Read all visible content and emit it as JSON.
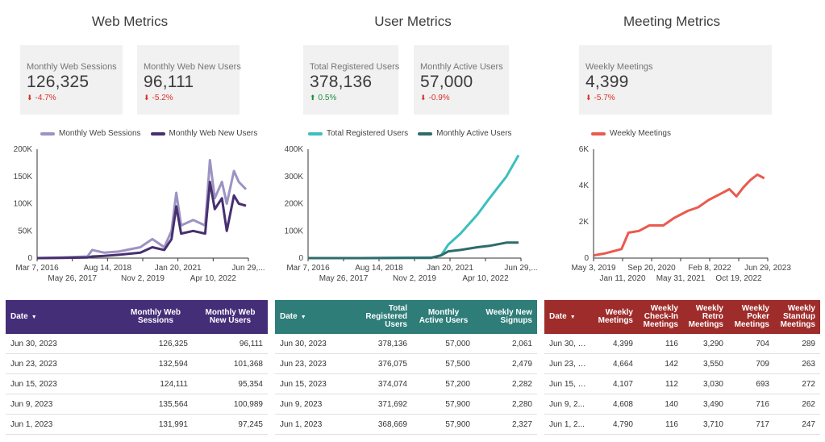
{
  "colors": {
    "web_light": "#9d93c3",
    "web_dark": "#46306f",
    "user_light": "#3dbfbd",
    "user_dark": "#2f6b6b",
    "meeting": "#ea5a4f",
    "web_header": "#452e78",
    "user_header": "#2e7d78",
    "meeting_header": "#9e2c2b"
  },
  "sections": {
    "web": {
      "title": "Web Metrics"
    },
    "user": {
      "title": "User Metrics"
    },
    "meeting": {
      "title": "Meeting Metrics"
    }
  },
  "kpis": {
    "web_sessions": {
      "label": "Monthly Web Sessions",
      "value": "126,325",
      "change": "-4.7%",
      "direction": "down"
    },
    "web_new_users": {
      "label": "Monthly Web New Users",
      "value": "96,111",
      "change": "-5.2%",
      "direction": "down"
    },
    "total_registered": {
      "label": "Total Registered Users",
      "value": "378,136",
      "change": "0.5%",
      "direction": "up"
    },
    "monthly_active": {
      "label": "Monthly Active Users",
      "value": "57,000",
      "change": "-0.9%",
      "direction": "down"
    },
    "weekly_meetings": {
      "label": "Weekly Meetings",
      "value": "4,399",
      "change": "-5.7%",
      "direction": "down"
    }
  },
  "chart_data": [
    {
      "type": "line",
      "legend_position": "top",
      "ylim": [
        0,
        200000
      ],
      "y_ticks": [
        "0",
        "50K",
        "100K",
        "150K",
        "200K"
      ],
      "x_ticks_top": [
        "Mar 7, 2016",
        "Aug 14, 2018",
        "Jan 20, 2021",
        "Jun 29,..."
      ],
      "x_ticks_bottom": [
        "May 26, 2017",
        "Nov 2, 2019",
        "Apr 10, 2022"
      ],
      "series": [
        {
          "name": "Monthly Web Sessions",
          "x": [
            "2016-03",
            "2017-01",
            "2017-12",
            "2018-02",
            "2018-07",
            "2019-01",
            "2019-10",
            "2020-03",
            "2020-08",
            "2020-11",
            "2021-01",
            "2021-03",
            "2021-08",
            "2022-01",
            "2022-03",
            "2022-05",
            "2022-08",
            "2022-10",
            "2023-01",
            "2023-03",
            "2023-06"
          ],
          "values": [
            0,
            1000,
            3000,
            15000,
            10000,
            12000,
            20000,
            35000,
            20000,
            50000,
            120000,
            60000,
            70000,
            60000,
            180000,
            110000,
            140000,
            100000,
            160000,
            140000,
            126325
          ]
        },
        {
          "name": "Monthly Web New Users",
          "x": [
            "2016-03",
            "2017-01",
            "2017-12",
            "2018-02",
            "2018-07",
            "2019-01",
            "2019-10",
            "2020-03",
            "2020-08",
            "2020-11",
            "2021-01",
            "2021-03",
            "2021-08",
            "2022-01",
            "2022-03",
            "2022-05",
            "2022-08",
            "2022-10",
            "2023-01",
            "2023-03",
            "2023-06"
          ],
          "values": [
            0,
            500,
            1000,
            3000,
            4000,
            6000,
            10000,
            20000,
            15000,
            35000,
            95000,
            45000,
            50000,
            45000,
            140000,
            90000,
            110000,
            50000,
            115000,
            100000,
            96111
          ]
        }
      ]
    },
    {
      "type": "line",
      "legend_position": "top",
      "ylim": [
        0,
        400000
      ],
      "y_ticks": [
        "0",
        "100K",
        "200K",
        "300K",
        "400K"
      ],
      "x_ticks_top": [
        "Mar 7, 2016",
        "Aug 14, 2018",
        "Jan 20, 2021",
        "Jun 29,..."
      ],
      "x_ticks_bottom": [
        "May 26, 2017",
        "Nov 2, 2019",
        "Apr 10, 2022"
      ],
      "series": [
        {
          "name": "Total Registered Users",
          "x": [
            "2016-03",
            "2018-01",
            "2020-06",
            "2020-10",
            "2021-01",
            "2021-06",
            "2022-01",
            "2022-06",
            "2023-01",
            "2023-06"
          ],
          "values": [
            0,
            0,
            2000,
            10000,
            50000,
            90000,
            160000,
            220000,
            300000,
            378136
          ]
        },
        {
          "name": "Monthly Active Users",
          "x": [
            "2016-03",
            "2018-01",
            "2020-06",
            "2020-10",
            "2021-01",
            "2021-06",
            "2022-01",
            "2022-06",
            "2023-01",
            "2023-06"
          ],
          "values": [
            0,
            0,
            1000,
            10000,
            25000,
            30000,
            40000,
            45000,
            57000,
            57000
          ]
        }
      ]
    },
    {
      "type": "line",
      "legend_position": "top",
      "ylim": [
        0,
        6000
      ],
      "y_ticks": [
        "0",
        "2K",
        "4K",
        "6K"
      ],
      "x_ticks_top": [
        "May 3, 2019",
        "Sep 20, 2020",
        "Feb 8, 2022",
        "Jun 29, 2023"
      ],
      "x_ticks_bottom": [
        "Jan 11, 2020",
        "May 31, 2021",
        "Oct 19, 2022"
      ],
      "series": [
        {
          "name": "Weekly Meetings",
          "x": [
            "2019-05",
            "2019-08",
            "2020-01",
            "2020-03",
            "2020-06",
            "2020-09",
            "2021-01",
            "2021-04",
            "2021-08",
            "2021-11",
            "2022-02",
            "2022-05",
            "2022-08",
            "2022-10",
            "2022-12",
            "2023-02",
            "2023-04",
            "2023-06"
          ],
          "values": [
            150,
            250,
            500,
            1400,
            1500,
            1800,
            1800,
            2200,
            2600,
            2800,
            3200,
            3500,
            3800,
            3400,
            3900,
            4300,
            4600,
            4399
          ]
        }
      ]
    }
  ],
  "tables": {
    "web": {
      "headers": [
        "Date",
        "Monthly Web Sessions",
        "Monthly Web New Users"
      ],
      "sort_icon": "▼",
      "rows": [
        [
          "Jun 30, 2023",
          "126,325",
          "96,111"
        ],
        [
          "Jun 23, 2023",
          "132,594",
          "101,368"
        ],
        [
          "Jun 15, 2023",
          "124,111",
          "95,354"
        ],
        [
          "Jun 9, 2023",
          "135,564",
          "100,989"
        ],
        [
          "Jun 1, 2023",
          "131,991",
          "97,245"
        ]
      ]
    },
    "user": {
      "headers": [
        "Date",
        "Total Registered Users",
        "Monthly Active Users",
        "Weekly New Signups"
      ],
      "sort_icon": "▼",
      "rows": [
        [
          "Jun 30, 2023",
          "378,136",
          "57,000",
          "2,061"
        ],
        [
          "Jun 23, 2023",
          "376,075",
          "57,500",
          "2,479"
        ],
        [
          "Jun 15, 2023",
          "374,074",
          "57,200",
          "2,282"
        ],
        [
          "Jun 9, 2023",
          "371,692",
          "57,900",
          "2,280"
        ],
        [
          "Jun 1, 2023",
          "368,669",
          "57,900",
          "2,327"
        ]
      ]
    },
    "meeting": {
      "headers": [
        "Date",
        "Weekly Meetings",
        "Weekly Check-In Meetings",
        "Weekly Retro Meetings",
        "Weekly Poker Meetings",
        "Weekly Standup Meetings"
      ],
      "sort_icon": "▼",
      "rows": [
        [
          "Jun 30, 2...",
          "4,399",
          "116",
          "3,290",
          "704",
          "289"
        ],
        [
          "Jun 23, 2...",
          "4,664",
          "142",
          "3,550",
          "709",
          "263"
        ],
        [
          "Jun 15, 2...",
          "4,107",
          "112",
          "3,030",
          "693",
          "272"
        ],
        [
          "Jun 9, 2...",
          "4,608",
          "140",
          "3,490",
          "716",
          "262"
        ],
        [
          "Jun 1, 2...",
          "4,790",
          "116",
          "3,710",
          "717",
          "247"
        ]
      ]
    }
  }
}
